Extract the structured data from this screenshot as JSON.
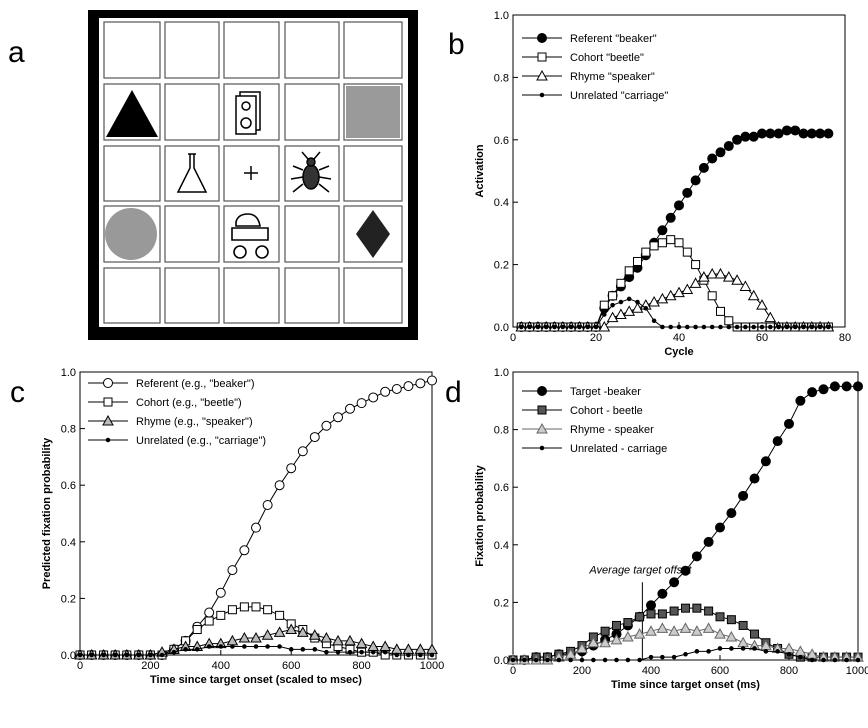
{
  "panel_a": {
    "label": "a"
  },
  "chart_data": [
    {
      "type": "line",
      "label": "b",
      "ylabel": "Activation",
      "xlabel": "Cycle",
      "xlim": [
        0,
        80
      ],
      "xticks": [
        0,
        20,
        40,
        60,
        80
      ],
      "ylim": [
        0,
        1
      ],
      "yticks": [
        {
          "value": 0,
          "label": "0.0"
        },
        0.2,
        0.4,
        0.6,
        0.8,
        {
          "value": 1,
          "label": "1.0"
        }
      ],
      "x": [
        2,
        4,
        6,
        8,
        10,
        12,
        14,
        16,
        18,
        20,
        22,
        24,
        26,
        28,
        30,
        32,
        34,
        36,
        38,
        40,
        42,
        44,
        46,
        48,
        50,
        52,
        54,
        56,
        58,
        60,
        62,
        64,
        66,
        68,
        70,
        72,
        74,
        76
      ],
      "series": [
        {
          "name": "Referent \"beaker\"",
          "color": "#000",
          "marker": "circle",
          "fill": "#000",
          "values": [
            0,
            0,
            0,
            0,
            0,
            0,
            0,
            0,
            0,
            0,
            0.06,
            0.1,
            0.13,
            0.16,
            0.19,
            0.23,
            0.27,
            0.31,
            0.35,
            0.39,
            0.43,
            0.47,
            0.51,
            0.54,
            0.56,
            0.58,
            0.6,
            0.61,
            0.61,
            0.62,
            0.62,
            0.62,
            0.63,
            0.63,
            0.62,
            0.62,
            0.62,
            0.62
          ]
        },
        {
          "name": "Cohort \"beetle\"",
          "color": "#000",
          "marker": "square",
          "fill": "#fff",
          "values": [
            0,
            0,
            0,
            0,
            0,
            0,
            0,
            0,
            0,
            0,
            0.07,
            0.1,
            0.14,
            0.18,
            0.21,
            0.24,
            0.26,
            0.27,
            0.28,
            0.27,
            0.24,
            0.2,
            0.15,
            0.1,
            0.05,
            0.02,
            0,
            0,
            0,
            0,
            0,
            0,
            0,
            0,
            0,
            0,
            0,
            0
          ]
        },
        {
          "name": "Rhyme \"speaker\"",
          "color": "#000",
          "marker": "triangle",
          "fill": "#fff",
          "values": [
            0,
            0,
            0,
            0,
            0,
            0,
            0,
            0,
            0,
            0,
            0,
            0.03,
            0.04,
            0.05,
            0.06,
            0.07,
            0.08,
            0.09,
            0.1,
            0.11,
            0.12,
            0.14,
            0.16,
            0.17,
            0.17,
            0.16,
            0.15,
            0.13,
            0.1,
            0.07,
            0.03,
            0,
            0,
            0,
            0,
            0,
            0,
            0
          ]
        },
        {
          "name": "Unrelated \"carriage\"",
          "color": "#000",
          "marker": "dot",
          "fill": "#000",
          "values": [
            0,
            0,
            0,
            0,
            0,
            0,
            0,
            0,
            0,
            0,
            0.04,
            0.07,
            0.08,
            0.09,
            0.08,
            0.06,
            0.02,
            0,
            0,
            0,
            0,
            0,
            0,
            0,
            0,
            0,
            0,
            0,
            0,
            0,
            0,
            0,
            0,
            0,
            0,
            0,
            0,
            0
          ]
        }
      ]
    },
    {
      "type": "line",
      "label": "c",
      "ylabel": "Predicted fixation probability",
      "xlabel": "Time since target onset (scaled to msec)",
      "xlim": [
        0,
        1000
      ],
      "xticks": [
        0,
        200,
        400,
        600,
        800,
        1000
      ],
      "ylim": [
        0,
        1
      ],
      "yticks": [
        {
          "value": 0,
          "label": "0.0"
        },
        0.2,
        0.4,
        0.6,
        0.8,
        {
          "value": 1,
          "label": "1.0"
        }
      ],
      "x": [
        0,
        33,
        67,
        100,
        133,
        167,
        200,
        233,
        267,
        300,
        333,
        367,
        400,
        433,
        467,
        500,
        533,
        567,
        600,
        633,
        667,
        700,
        733,
        767,
        800,
        833,
        867,
        900,
        933,
        967,
        1000
      ],
      "series": [
        {
          "name": "Referent (e.g., \"beaker\")",
          "color": "#000",
          "marker": "circle",
          "fill": "#fff",
          "values": [
            0,
            0,
            0,
            0,
            0,
            0,
            0,
            0,
            0.02,
            0.05,
            0.1,
            0.15,
            0.22,
            0.3,
            0.37,
            0.45,
            0.53,
            0.6,
            0.66,
            0.72,
            0.77,
            0.81,
            0.84,
            0.87,
            0.89,
            0.91,
            0.93,
            0.94,
            0.95,
            0.96,
            0.97
          ]
        },
        {
          "name": "Cohort (e.g., \"beetle\")",
          "color": "#000",
          "marker": "square",
          "fill": "#fff",
          "values": [
            0,
            0,
            0,
            0,
            0,
            0,
            0,
            0,
            0.02,
            0.05,
            0.09,
            0.12,
            0.14,
            0.16,
            0.17,
            0.17,
            0.16,
            0.14,
            0.11,
            0.09,
            0.06,
            0.04,
            0.03,
            0.02,
            0.01,
            0.01,
            0,
            0,
            0,
            0,
            0
          ]
        },
        {
          "name": "Rhyme (e.g., \"speaker\")",
          "color": "#000",
          "marker": "triangle",
          "fill": "#bbb",
          "values": [
            0,
            0,
            0,
            0,
            0,
            0,
            0,
            0.01,
            0.02,
            0.03,
            0.03,
            0.04,
            0.04,
            0.05,
            0.06,
            0.06,
            0.07,
            0.08,
            0.09,
            0.08,
            0.07,
            0.06,
            0.05,
            0.05,
            0.04,
            0.03,
            0.03,
            0.02,
            0.02,
            0.02,
            0.02
          ]
        },
        {
          "name": "Unrelated (e.g., \"carriage\")",
          "color": "#000",
          "marker": "dot",
          "fill": "#000",
          "values": [
            0,
            0,
            0,
            0,
            0,
            0,
            0,
            0,
            0.01,
            0.02,
            0.02,
            0.03,
            0.03,
            0.03,
            0.03,
            0.03,
            0.03,
            0.03,
            0.02,
            0.02,
            0.02,
            0.01,
            0.01,
            0.01,
            0.01,
            0.01,
            0.01,
            0,
            0,
            0,
            0
          ]
        }
      ]
    },
    {
      "type": "line",
      "label": "d",
      "ylabel": "Fixation probability",
      "xlabel": "Time since target onset (ms)",
      "xlim": [
        0,
        1000
      ],
      "xticks": [
        0,
        200,
        400,
        600,
        800,
        1000
      ],
      "ylim": [
        0,
        1
      ],
      "yticks": [
        {
          "value": 0,
          "label": "0.0"
        },
        0.2,
        0.4,
        0.6,
        0.8,
        {
          "value": 1,
          "label": "1.0"
        }
      ],
      "annotation": {
        "text": "Average target offset",
        "x": 375
      },
      "x": [
        0,
        33,
        67,
        100,
        133,
        167,
        200,
        233,
        267,
        300,
        333,
        367,
        400,
        433,
        467,
        500,
        533,
        567,
        600,
        633,
        667,
        700,
        733,
        767,
        800,
        833,
        867,
        900,
        933,
        967,
        1000
      ],
      "series": [
        {
          "name": "Target -beaker",
          "color": "#000",
          "marker": "circle",
          "fill": "#000",
          "values": [
            0,
            0,
            0.01,
            0.01,
            0.02,
            0.02,
            0.03,
            0.05,
            0.07,
            0.09,
            0.12,
            0.15,
            0.19,
            0.23,
            0.27,
            0.31,
            0.36,
            0.41,
            0.46,
            0.51,
            0.57,
            0.63,
            0.69,
            0.76,
            0.82,
            0.9,
            0.93,
            0.94,
            0.95,
            0.95,
            0.95
          ]
        },
        {
          "name": "Cohort - beetle",
          "color": "#000",
          "marker": "square",
          "fill": "#555",
          "values": [
            0,
            0,
            0.01,
            0.01,
            0.02,
            0.03,
            0.05,
            0.08,
            0.1,
            0.12,
            0.13,
            0.15,
            0.16,
            0.16,
            0.17,
            0.18,
            0.18,
            0.17,
            0.15,
            0.14,
            0.12,
            0.09,
            0.06,
            0.04,
            0.02,
            0.01,
            0.01,
            0.01,
            0.01,
            0.01,
            0.01
          ]
        },
        {
          "name": "Rhyme - speaker",
          "color": "#666",
          "marker": "triangle",
          "fill": "#ccc",
          "values": [
            0,
            0,
            0,
            0,
            0.01,
            0.02,
            0.04,
            0.06,
            0.06,
            0.07,
            0.08,
            0.09,
            0.1,
            0.11,
            0.1,
            0.11,
            0.1,
            0.11,
            0.09,
            0.08,
            0.06,
            0.05,
            0.05,
            0.04,
            0.04,
            0.03,
            0.02,
            0.01,
            0.01,
            0.01,
            0.01
          ]
        },
        {
          "name": "Unrelated - carriage",
          "color": "#000",
          "marker": "dot",
          "fill": "#000",
          "values": [
            0,
            0,
            0,
            0,
            0,
            0,
            0,
            0,
            0,
            0,
            0,
            0,
            0.01,
            0.01,
            0.01,
            0.02,
            0.03,
            0.03,
            0.04,
            0.04,
            0.04,
            0.04,
            0.03,
            0.03,
            0.02,
            0.01,
            0,
            0,
            0,
            0,
            0
          ]
        }
      ]
    }
  ]
}
